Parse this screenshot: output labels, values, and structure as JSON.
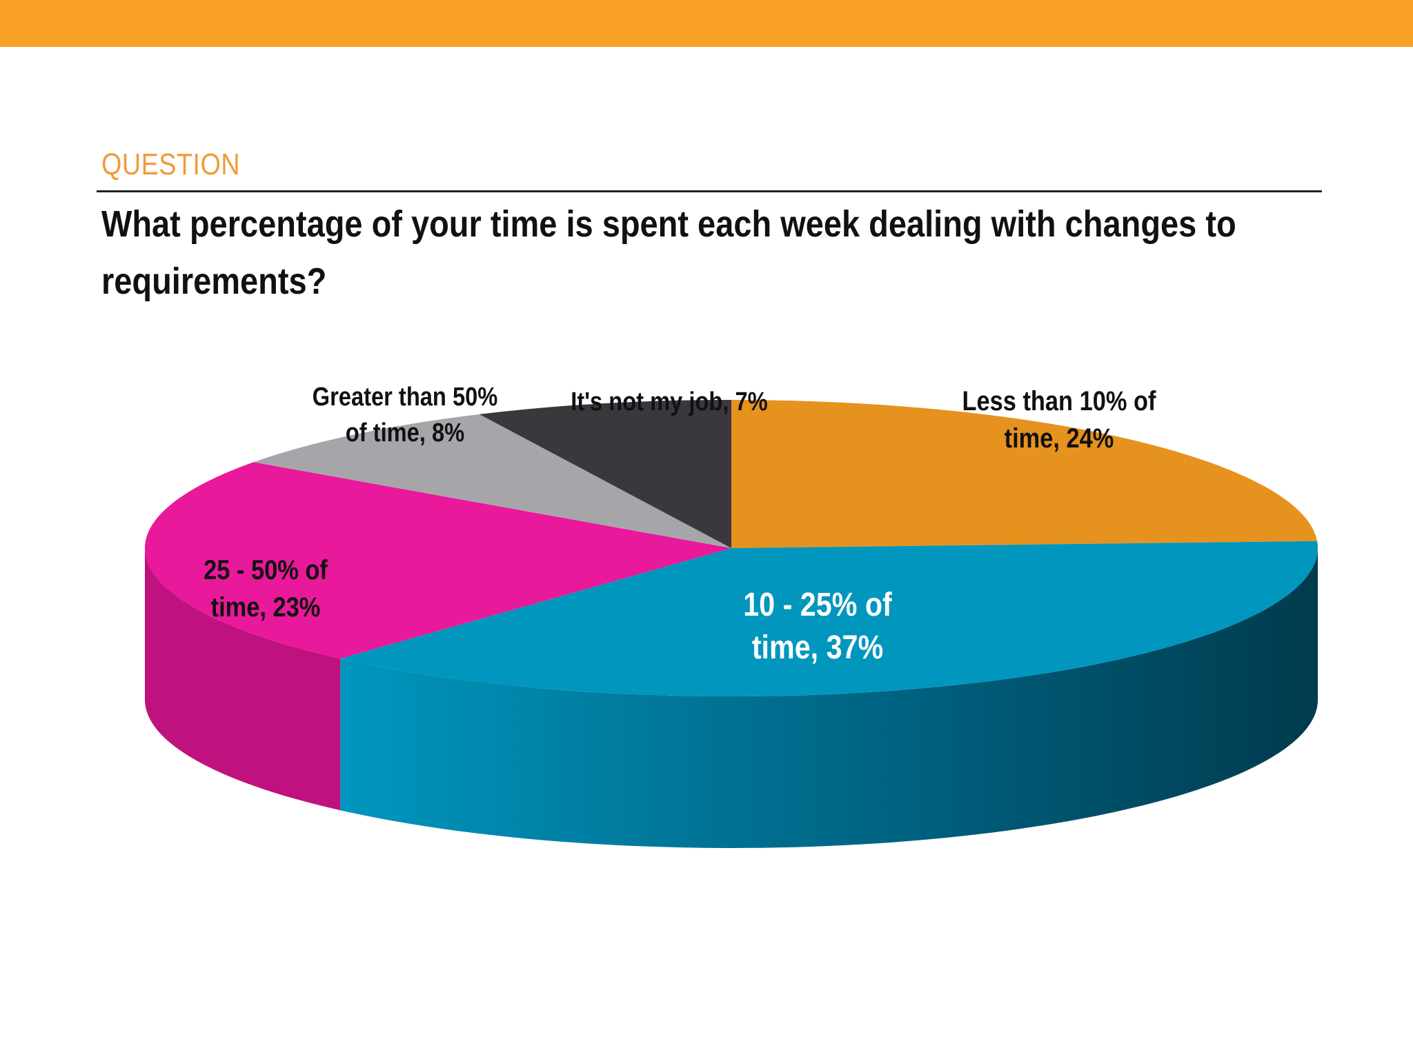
{
  "header": {
    "section_label": "QUESTION",
    "question": "What percentage of your time is spent each week dealing with changes to requirements?"
  },
  "colors": {
    "top_bar": "#F7A024",
    "section_label": "#F19B3C"
  },
  "chart_data": {
    "type": "pie",
    "title": "What percentage of your time is spent each week dealing with changes to requirements?",
    "slices": [
      {
        "name": "Less than 10% of time",
        "value": 24,
        "label_lines": [
          "Less than 10% of",
          "time, 24%"
        ],
        "color": "#E6921E",
        "color_dark": "#B8730F"
      },
      {
        "name": "10 - 25% of time",
        "value": 37,
        "label_lines": [
          "10 - 25% of",
          "time, 37%"
        ],
        "color": "#0096BE",
        "color_dark": "#003B4D"
      },
      {
        "name": "25 - 50% of time",
        "value": 23,
        "label_lines": [
          "25 - 50% of",
          "time, 23%"
        ],
        "color": "#E8199A",
        "color_dark": "#C0127E"
      },
      {
        "name": "Greater than 50% of time",
        "value": 8,
        "label_lines": [
          "Greater than 50%",
          "of time, 8%"
        ],
        "color": "#A6A6AA",
        "color_dark": "#7E7E82"
      },
      {
        "name": "It's not my job",
        "value": 7,
        "label_lines": [
          "It's not my job, 7%"
        ],
        "color": "#3A383C",
        "color_dark": "#222124"
      }
    ]
  }
}
